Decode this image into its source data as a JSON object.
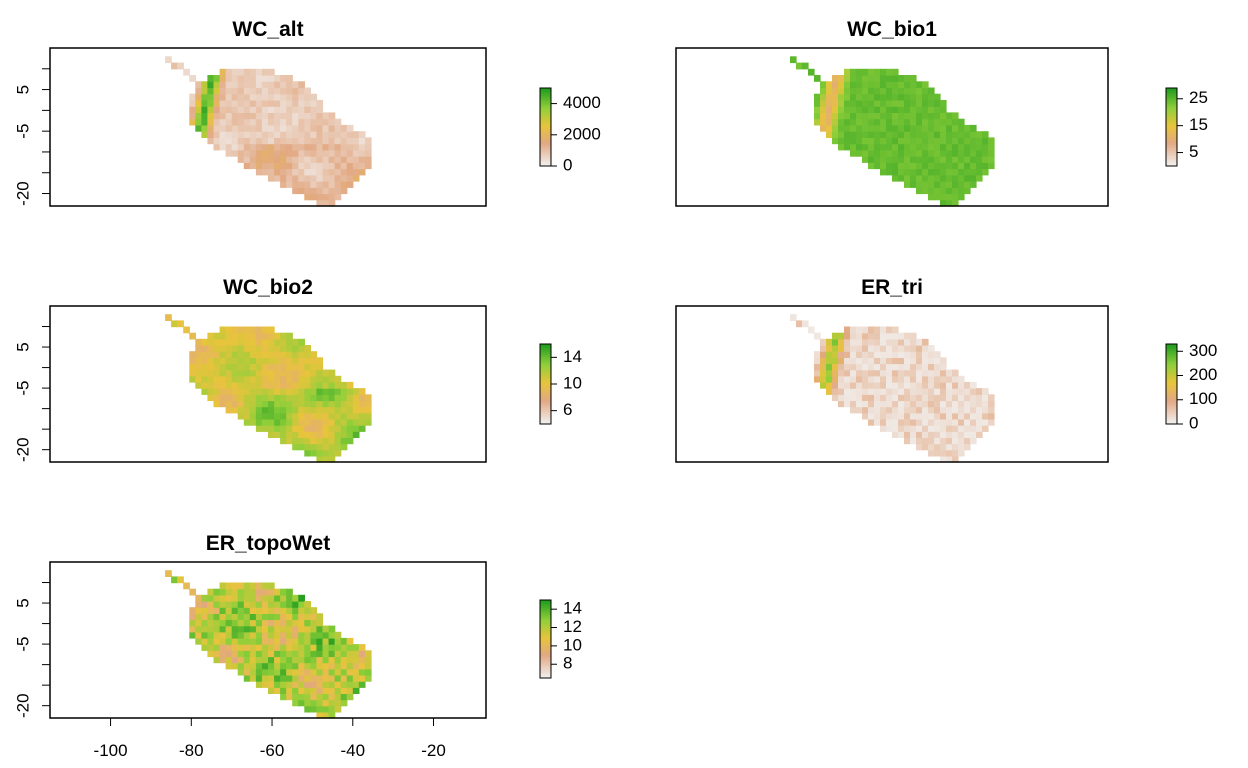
{
  "chart_data": [
    {
      "type": "heatmap",
      "title": "WC_alt",
      "ylim": [
        -23,
        15
      ],
      "y_ticks": [
        5,
        -5,
        -20
      ],
      "y_tick_labels": [
        "5",
        "-5",
        "-20"
      ],
      "x_tick_labels": [],
      "map_style": "alt",
      "colorbar": {
        "ticks": [
          4000,
          2000,
          0
        ],
        "tick_labels": [
          "4000",
          "2000",
          "0"
        ],
        "range": [
          0,
          5000
        ]
      }
    },
    {
      "type": "heatmap",
      "title": "WC_bio1",
      "ylim": [
        -23,
        15
      ],
      "y_ticks": [],
      "y_tick_labels": [],
      "x_tick_labels": [],
      "map_style": "bio1",
      "colorbar": {
        "ticks": [
          25,
          15,
          5
        ],
        "tick_labels": [
          "25",
          "15",
          "5"
        ],
        "range": [
          0,
          29
        ]
      }
    },
    {
      "type": "heatmap",
      "title": "WC_bio2",
      "ylim": [
        -23,
        15
      ],
      "y_ticks": [
        5,
        -5,
        -20
      ],
      "y_tick_labels": [
        "5",
        "-5",
        "-20"
      ],
      "x_tick_labels": [],
      "map_style": "bio2",
      "colorbar": {
        "ticks": [
          14,
          10,
          6
        ],
        "tick_labels": [
          "14",
          "10",
          "6"
        ],
        "range": [
          4,
          16
        ]
      }
    },
    {
      "type": "heatmap",
      "title": "ER_tri",
      "ylim": [
        -23,
        15
      ],
      "y_ticks": [],
      "y_tick_labels": [],
      "x_tick_labels": [],
      "map_style": "tri",
      "colorbar": {
        "ticks": [
          300,
          200,
          100,
          0
        ],
        "tick_labels": [
          "300",
          "200",
          "100",
          "0"
        ],
        "range": [
          0,
          330
        ]
      }
    },
    {
      "type": "heatmap",
      "title": "ER_topoWet",
      "ylim": [
        -23,
        15
      ],
      "xlim": [
        -115,
        -7
      ],
      "y_ticks": [
        5,
        -5,
        -20
      ],
      "y_tick_labels": [
        "5",
        "-5",
        "-20"
      ],
      "x_ticks": [
        -100,
        -80,
        -60,
        -40,
        -20
      ],
      "x_tick_labels": [
        "-100",
        "-80",
        "-60",
        "-40",
        "-20"
      ],
      "map_style": "topo",
      "colorbar": {
        "ticks": [
          14,
          12,
          10,
          8
        ],
        "tick_labels": [
          "14",
          "12",
          "10",
          "8"
        ],
        "range": [
          6.5,
          15
        ]
      }
    }
  ],
  "colors": {
    "ramp_low": "#f2f2f2",
    "ramp_mid_low": "#e2a882",
    "ramp_mid": "#e8c43c",
    "ramp_high": "#8fcf3a",
    "ramp_top": "#1f9b1f"
  }
}
